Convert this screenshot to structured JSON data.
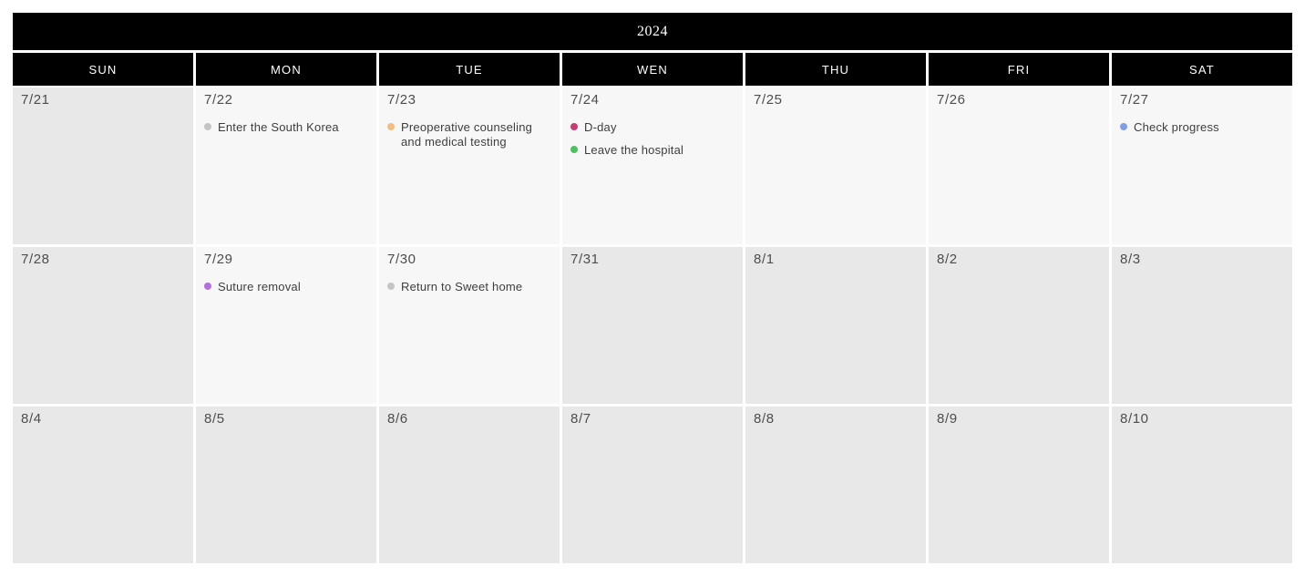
{
  "calendar": {
    "title": "2024",
    "weekdays": [
      "SUN",
      "MON",
      "TUE",
      "WEN",
      "THU",
      "FRI",
      "SAT"
    ],
    "cell_colors": {
      "dark": "#e8e8e8",
      "light": "#f7f7f7"
    },
    "event_dot_colors": {
      "gray": "#c4c4c4",
      "orange": "#f4bc80",
      "pink": "#c63d72",
      "green": "#4cc15e",
      "blue": "#7e9fe8",
      "purple": "#b36fdd"
    },
    "weeks": [
      [
        {
          "date": "7/21",
          "shade": "dark",
          "events": []
        },
        {
          "date": "7/22",
          "shade": "light",
          "events": [
            {
              "dot": "gray",
              "label": "Enter the South Korea"
            }
          ]
        },
        {
          "date": "7/23",
          "shade": "light",
          "events": [
            {
              "dot": "orange",
              "label": "Preoperative counseling and medical testing"
            }
          ]
        },
        {
          "date": "7/24",
          "shade": "light",
          "events": [
            {
              "dot": "pink",
              "label": "D-day"
            },
            {
              "dot": "green",
              "label": "Leave the hospital"
            }
          ]
        },
        {
          "date": "7/25",
          "shade": "light",
          "events": []
        },
        {
          "date": "7/26",
          "shade": "light",
          "events": []
        },
        {
          "date": "7/27",
          "shade": "light",
          "events": [
            {
              "dot": "blue",
              "label": "Check progress"
            }
          ]
        }
      ],
      [
        {
          "date": "7/28",
          "shade": "dark",
          "events": []
        },
        {
          "date": "7/29",
          "shade": "light",
          "events": [
            {
              "dot": "purple",
              "label": "Suture removal"
            }
          ]
        },
        {
          "date": "7/30",
          "shade": "light",
          "events": [
            {
              "dot": "gray",
              "label": "Return to Sweet home"
            }
          ]
        },
        {
          "date": "7/31",
          "shade": "dark",
          "events": []
        },
        {
          "date": "8/1",
          "shade": "dark",
          "events": []
        },
        {
          "date": "8/2",
          "shade": "dark",
          "events": []
        },
        {
          "date": "8/3",
          "shade": "dark",
          "events": []
        }
      ],
      [
        {
          "date": "8/4",
          "shade": "dark",
          "events": []
        },
        {
          "date": "8/5",
          "shade": "dark",
          "events": []
        },
        {
          "date": "8/6",
          "shade": "dark",
          "events": []
        },
        {
          "date": "8/7",
          "shade": "dark",
          "events": []
        },
        {
          "date": "8/8",
          "shade": "dark",
          "events": []
        },
        {
          "date": "8/9",
          "shade": "dark",
          "events": []
        },
        {
          "date": "8/10",
          "shade": "dark",
          "events": []
        }
      ]
    ]
  }
}
